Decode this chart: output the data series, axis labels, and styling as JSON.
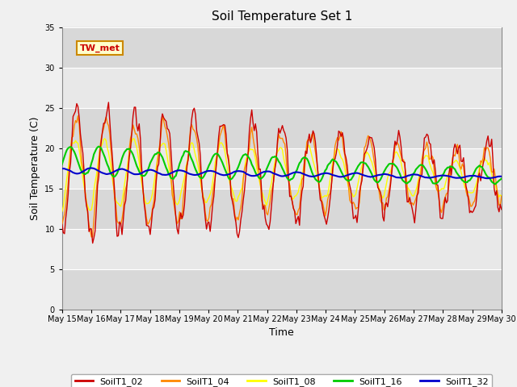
{
  "title": "Soil Temperature Set 1",
  "xlabel": "Time",
  "ylabel": "Soil Temperature (C)",
  "ylim": [
    0,
    35
  ],
  "yticks": [
    0,
    5,
    10,
    15,
    20,
    25,
    30,
    35
  ],
  "fig_bg": "#f0f0f0",
  "plot_bg": "#e8e8e8",
  "grid_color": "#ffffff",
  "annotation_text": "TW_met",
  "series_colors": [
    "#cc0000",
    "#ff8800",
    "#ffff00",
    "#00cc00",
    "#0000cc"
  ],
  "series_names": [
    "SoilT1_02",
    "SoilT1_04",
    "SoilT1_08",
    "SoilT1_16",
    "SoilT1_32"
  ],
  "x_tick_labels": [
    "May 15",
    "May 16",
    "May 17",
    "May 18",
    "May 19",
    "May 20",
    "May 21",
    "May 22",
    "May 23",
    "May 24",
    "May 25",
    "May 26",
    "May 27",
    "May 28",
    "May 29",
    "May 30"
  ],
  "n_days": 15,
  "hours_per_day": 24
}
